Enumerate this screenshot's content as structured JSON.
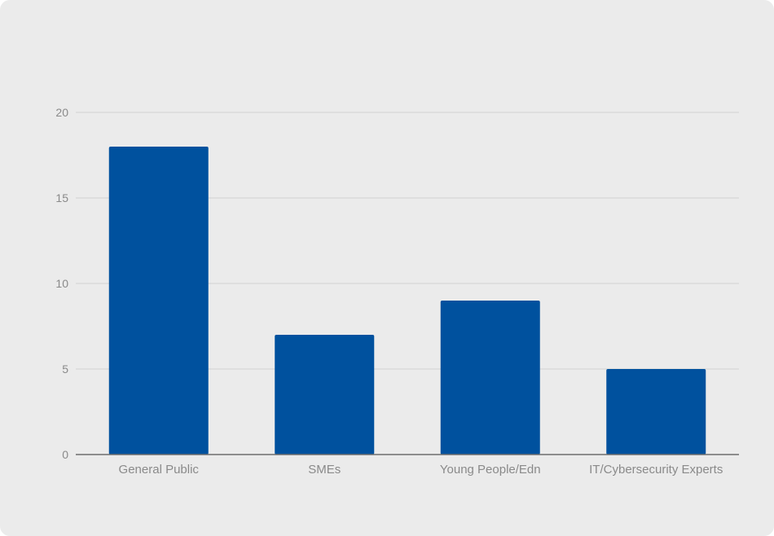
{
  "chart_data": {
    "type": "bar",
    "categories": [
      "General Public",
      "SMEs",
      "Young People/Edn",
      "IT/Cybersecurity Experts"
    ],
    "values": [
      18,
      7,
      9,
      5
    ],
    "title": "",
    "xlabel": "",
    "ylabel": "",
    "ylim": [
      0,
      20
    ],
    "yticks": [
      0,
      5,
      10,
      15,
      20
    ],
    "grid": true,
    "legend": "none",
    "bar_color": "#00519e",
    "grid_color": "#d2d2d2",
    "axis_color": "#6e6e6e",
    "background_color": "#ebebeb"
  }
}
